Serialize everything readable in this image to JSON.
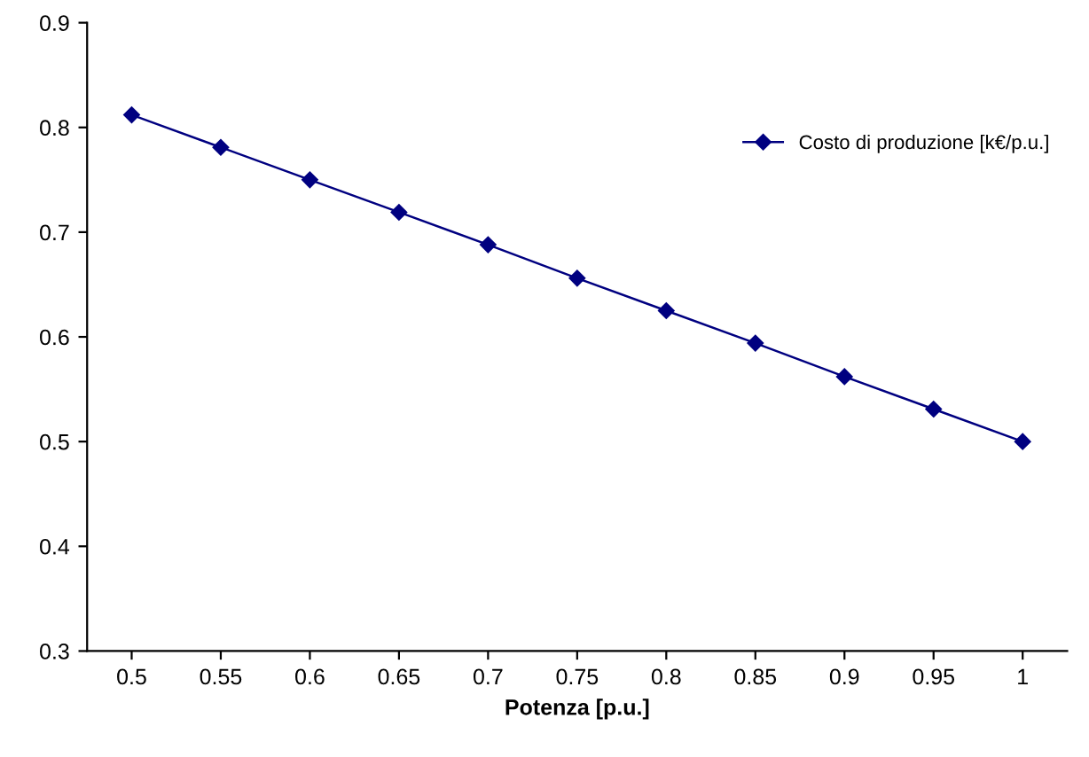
{
  "chart_data": {
    "type": "line",
    "xlabel": "Potenza [p.u.]",
    "categories": [
      "0.5",
      "0.55",
      "0.6",
      "0.65",
      "0.7",
      "0.75",
      "0.8",
      "0.85",
      "0.9",
      "0.95",
      "1"
    ],
    "series": [
      {
        "name": "Costo di produzione [k€/p.u.]",
        "color": "#000080",
        "values": [
          0.812,
          0.781,
          0.75,
          0.719,
          0.688,
          0.656,
          0.625,
          0.594,
          0.562,
          0.531,
          0.5
        ]
      }
    ],
    "ylim": [
      0.3,
      0.9
    ],
    "yticks": [
      0.3,
      0.4,
      0.5,
      0.6,
      0.7,
      0.8,
      0.9
    ],
    "grid": false,
    "legend": "top right",
    "marker": "diamond",
    "line_style": "solid"
  }
}
